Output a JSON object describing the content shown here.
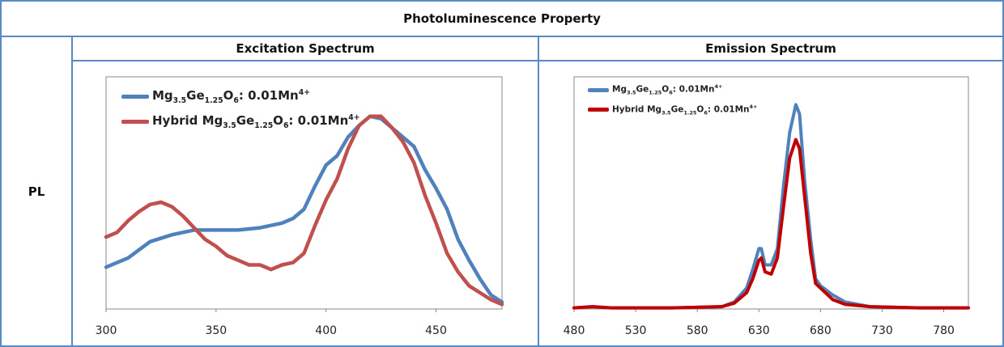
{
  "header": {
    "title": "Photoluminescence Property",
    "row_label": "PL"
  },
  "colors": {
    "border": "#5a8ac6",
    "blue": "#4f81bd",
    "red_exc": "#c0504d",
    "red_em": "#c00000"
  },
  "chart_data": [
    {
      "type": "line",
      "title": "Excitation Spectrum",
      "xlabel": "",
      "ylabel": "",
      "xlim": [
        300,
        480
      ],
      "ylim": [
        0,
        1
      ],
      "xticks": [
        "300",
        "350",
        "400",
        "450"
      ],
      "legend_position": "top-left",
      "series": [
        {
          "name": "Mg3.5Ge1.25O6: 0.01Mn4+",
          "parts": [
            [
              "Mg",
              ""
            ],
            [
              "3.5",
              "sub"
            ],
            [
              "Ge",
              ""
            ],
            [
              "1.25",
              "sub"
            ],
            [
              "O",
              ""
            ],
            [
              "6",
              "sub"
            ],
            [
              ": 0.01Mn",
              ""
            ],
            [
              "4+",
              "sup"
            ]
          ],
          "color": "#4f81bd",
          "x": [
            300,
            310,
            320,
            330,
            340,
            350,
            360,
            370,
            380,
            385,
            390,
            395,
            400,
            405,
            410,
            415,
            420,
            425,
            430,
            435,
            440,
            445,
            450,
            455,
            460,
            465,
            470,
            475,
            480
          ],
          "y": [
            0.18,
            0.22,
            0.29,
            0.32,
            0.34,
            0.34,
            0.34,
            0.35,
            0.37,
            0.39,
            0.43,
            0.53,
            0.62,
            0.66,
            0.74,
            0.79,
            0.83,
            0.82,
            0.78,
            0.74,
            0.7,
            0.6,
            0.52,
            0.43,
            0.3,
            0.21,
            0.13,
            0.06,
            0.03
          ]
        },
        {
          "name": "Hybrid Mg3.5Ge1.25O6: 0.01Mn4+",
          "parts": [
            [
              "Hybrid Mg",
              ""
            ],
            [
              "3.5",
              "sub"
            ],
            [
              "Ge",
              ""
            ],
            [
              "1.25",
              "sub"
            ],
            [
              "O",
              ""
            ],
            [
              "6",
              "sub"
            ],
            [
              ": 0.01Mn",
              ""
            ],
            [
              "4+",
              "sup"
            ]
          ],
          "color": "#c0504d",
          "x": [
            300,
            305,
            310,
            315,
            320,
            325,
            330,
            335,
            340,
            345,
            350,
            355,
            360,
            365,
            370,
            375,
            380,
            385,
            390,
            395,
            400,
            405,
            410,
            415,
            420,
            425,
            430,
            435,
            440,
            445,
            450,
            455,
            460,
            465,
            470,
            475,
            480
          ],
          "y": [
            0.31,
            0.33,
            0.38,
            0.42,
            0.45,
            0.46,
            0.44,
            0.4,
            0.35,
            0.3,
            0.27,
            0.23,
            0.21,
            0.19,
            0.19,
            0.17,
            0.19,
            0.2,
            0.24,
            0.36,
            0.47,
            0.56,
            0.69,
            0.79,
            0.83,
            0.83,
            0.78,
            0.72,
            0.63,
            0.49,
            0.37,
            0.24,
            0.16,
            0.1,
            0.07,
            0.04,
            0.02
          ]
        }
      ]
    },
    {
      "type": "line",
      "title": "Emission Spectrum",
      "xlabel": "",
      "ylabel": "",
      "xlim": [
        480,
        800
      ],
      "ylim": [
        0,
        1
      ],
      "xticks": [
        "480",
        "530",
        "580",
        "630",
        "680",
        "730",
        "780"
      ],
      "legend_position": "top-left",
      "series": [
        {
          "name": "Mg3.5Ge1.25O6: 0.01Mn4+",
          "parts": [
            [
              "Mg",
              ""
            ],
            [
              "3.5",
              "sub"
            ],
            [
              "Ge",
              ""
            ],
            [
              "1.25",
              "sub"
            ],
            [
              "O",
              ""
            ],
            [
              "6",
              "sub"
            ],
            [
              ": 0.01Mn",
              ""
            ],
            [
              "4+",
              "sup"
            ]
          ],
          "color": "#4f81bd",
          "x": [
            480,
            495,
            510,
            560,
            600,
            610,
            620,
            625,
            630,
            632,
            635,
            640,
            645,
            650,
            655,
            660,
            663,
            667,
            672,
            676,
            680,
            690,
            700,
            720,
            760,
            800
          ],
          "y": [
            0.005,
            0.01,
            0.005,
            0.005,
            0.01,
            0.03,
            0.09,
            0.17,
            0.26,
            0.26,
            0.19,
            0.19,
            0.26,
            0.53,
            0.76,
            0.88,
            0.84,
            0.56,
            0.3,
            0.13,
            0.1,
            0.06,
            0.03,
            0.01,
            0.005,
            0.005
          ]
        },
        {
          "name": "Hybrid Mg3.5Ge1.25O6: 0.01Mn4+",
          "parts": [
            [
              "Hybrid Mg",
              ""
            ],
            [
              "3.5",
              "sub"
            ],
            [
              "Ge",
              ""
            ],
            [
              "1.25",
              "sub"
            ],
            [
              "O",
              ""
            ],
            [
              "6",
              "sub"
            ],
            [
              ": 0.01Mn",
              ""
            ],
            [
              "4+",
              "sup"
            ]
          ],
          "color": "#c00000",
          "x": [
            480,
            495,
            510,
            560,
            600,
            610,
            620,
            625,
            630,
            632,
            635,
            640,
            645,
            650,
            655,
            660,
            663,
            667,
            672,
            676,
            680,
            690,
            700,
            720,
            760,
            800
          ],
          "y": [
            0.005,
            0.01,
            0.005,
            0.005,
            0.01,
            0.025,
            0.07,
            0.13,
            0.21,
            0.22,
            0.16,
            0.15,
            0.22,
            0.44,
            0.65,
            0.73,
            0.69,
            0.49,
            0.24,
            0.11,
            0.09,
            0.04,
            0.02,
            0.01,
            0.005,
            0.005
          ]
        }
      ]
    }
  ]
}
